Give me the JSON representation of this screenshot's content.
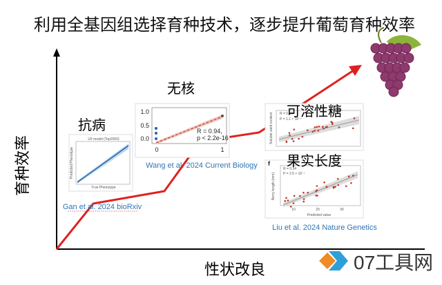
{
  "title": "利用全基因组选择育种技术，逐步提升葡萄育种效率",
  "axes": {
    "y_label": "育种效率",
    "x_label": "性状改良"
  },
  "milestones": [
    {
      "trait": "抗病",
      "citation": "Gan et al. 2024 bioRxiv",
      "inset": {
        "title": "LR model (Top2000)",
        "y_label": "Predicted Phenotype",
        "x_label": "True Phenotype"
      }
    },
    {
      "trait": "无核",
      "citation": "Wang et al. 2024 Current Biology",
      "inset": {
        "yticks": [
          "1.0",
          "0.5",
          "0.0"
        ],
        "xticks": [
          "0",
          "1"
        ],
        "stats": [
          "R = 0.94,",
          "p < 2.2e-16"
        ]
      }
    },
    {
      "trait": "可溶性糖",
      "citation": "Liu et al. 2024 Nature Genetics",
      "inset": {
        "stats": [
          "R = 0.57",
          "P = 1.1 × 10⁻⁷"
        ],
        "y_label": "Soluble solid content"
      }
    },
    {
      "trait": "果实长度",
      "inset": {
        "panel": "f",
        "stats": [
          "R = 0.54",
          "P = 2.5 × 10⁻⁷"
        ],
        "y_label": "Berry length (mm)",
        "x_label": "Predicted value",
        "xticks": [
          "10",
          "20",
          "30"
        ]
      }
    }
  ],
  "watermark": "07工具网"
}
